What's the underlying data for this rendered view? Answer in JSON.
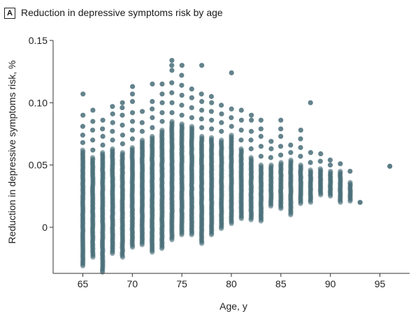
{
  "panel_label": "A",
  "chart_data": {
    "type": "scatter",
    "title": "Reduction in depressive symptoms risk by age",
    "xlabel": "Age, y",
    "ylabel": "Reduction in depressive symptoms risk, %",
    "xlim": [
      62,
      98
    ],
    "ylim": [
      -0.037,
      0.15
    ],
    "xticks": [
      65,
      70,
      75,
      80,
      85,
      90,
      95
    ],
    "yticks": [
      0,
      0.05,
      0.1,
      0.15
    ],
    "ytick_labels": [
      "0",
      "0.05",
      "0.10",
      "0.15"
    ],
    "grid": false,
    "color": "#3d6470",
    "columns": [
      {
        "age": 65,
        "low": -0.031,
        "high": 0.062,
        "outliers": [
          0.068,
          0.074,
          0.081,
          0.09,
          0.107
        ]
      },
      {
        "age": 66,
        "low": -0.024,
        "high": 0.056,
        "outliers": [
          0.062,
          0.07,
          0.078,
          0.085,
          0.094
        ]
      },
      {
        "age": 67,
        "low": -0.036,
        "high": 0.06,
        "outliers": [
          0.066,
          0.073,
          0.079,
          0.086
        ]
      },
      {
        "age": 68,
        "low": -0.021,
        "high": 0.063,
        "outliers": [
          0.07,
          0.077,
          0.084,
          0.091,
          0.097
        ]
      },
      {
        "age": 69,
        "low": -0.024,
        "high": 0.06,
        "outliers": [
          0.067,
          0.074,
          0.082,
          0.09,
          0.096,
          0.1
        ]
      },
      {
        "age": 70,
        "low": -0.016,
        "high": 0.064,
        "outliers": [
          0.071,
          0.078,
          0.085,
          0.092,
          0.101,
          0.107,
          0.113
        ]
      },
      {
        "age": 71,
        "low": -0.014,
        "high": 0.07,
        "outliers": [
          0.077,
          0.084,
          0.093
        ]
      },
      {
        "age": 72,
        "low": -0.02,
        "high": 0.073,
        "outliers": [
          0.08,
          0.088,
          0.095,
          0.101,
          0.115
        ]
      },
      {
        "age": 73,
        "low": -0.017,
        "high": 0.078,
        "outliers": [
          0.085,
          0.092,
          0.1,
          0.107,
          0.115
        ]
      },
      {
        "age": 74,
        "low": -0.01,
        "high": 0.085,
        "outliers": [
          0.092,
          0.1,
          0.108,
          0.116,
          0.126,
          0.13,
          0.134
        ]
      },
      {
        "age": 75,
        "low": -0.006,
        "high": 0.083,
        "outliers": [
          0.09,
          0.098,
          0.106,
          0.114,
          0.122,
          0.13
        ]
      },
      {
        "age": 76,
        "low": -0.006,
        "high": 0.081,
        "outliers": [
          0.088,
          0.096,
          0.104,
          0.111
        ]
      },
      {
        "age": 77,
        "low": -0.013,
        "high": 0.073,
        "outliers": [
          0.08,
          0.087,
          0.094,
          0.101,
          0.107,
          0.13
        ]
      },
      {
        "age": 78,
        "low": -0.006,
        "high": 0.072,
        "outliers": [
          0.079,
          0.086,
          0.093,
          0.1,
          0.105
        ]
      },
      {
        "age": 79,
        "low": -0.001,
        "high": 0.07,
        "outliers": [
          0.077,
          0.084,
          0.091,
          0.098
        ]
      },
      {
        "age": 80,
        "low": 0.003,
        "high": 0.074,
        "outliers": [
          0.081,
          0.088,
          0.095,
          0.124
        ]
      },
      {
        "age": 81,
        "low": 0.007,
        "high": 0.063,
        "outliers": [
          0.07,
          0.078,
          0.086,
          0.094
        ]
      },
      {
        "age": 82,
        "low": 0.006,
        "high": 0.056,
        "outliers": [
          0.063,
          0.07,
          0.077,
          0.086,
          0.09
        ]
      },
      {
        "age": 83,
        "low": 0.005,
        "high": 0.05,
        "outliers": [
          0.057,
          0.065,
          0.073,
          0.079,
          0.086
        ]
      },
      {
        "age": 84,
        "low": 0.017,
        "high": 0.05,
        "outliers": [
          0.056,
          0.063,
          0.069
        ]
      },
      {
        "age": 85,
        "low": 0.015,
        "high": 0.052,
        "outliers": [
          0.058,
          0.065,
          0.073,
          0.079,
          0.086
        ]
      },
      {
        "age": 86,
        "low": 0.01,
        "high": 0.054,
        "outliers": [
          0.06,
          0.066
        ]
      },
      {
        "age": 87,
        "low": 0.019,
        "high": 0.05,
        "outliers": [
          0.057,
          0.064,
          0.071,
          0.078
        ]
      },
      {
        "age": 88,
        "low": 0.02,
        "high": 0.046,
        "outliers": [
          0.052,
          0.06,
          0.1
        ]
      },
      {
        "age": 89,
        "low": 0.026,
        "high": 0.047,
        "outliers": [
          0.053,
          0.059
        ]
      },
      {
        "age": 90,
        "low": 0.025,
        "high": 0.045,
        "outliers": [
          0.05,
          0.054
        ]
      },
      {
        "age": 91,
        "low": 0.02,
        "high": 0.045,
        "outliers": [
          0.051
        ]
      },
      {
        "age": 92,
        "low": 0.021,
        "high": 0.036,
        "outliers": [
          0.045
        ]
      },
      {
        "age": 93,
        "low": 0.02,
        "high": 0.02,
        "outliers": []
      },
      {
        "age": 96,
        "low": 0.049,
        "high": 0.049,
        "outliers": []
      }
    ]
  }
}
